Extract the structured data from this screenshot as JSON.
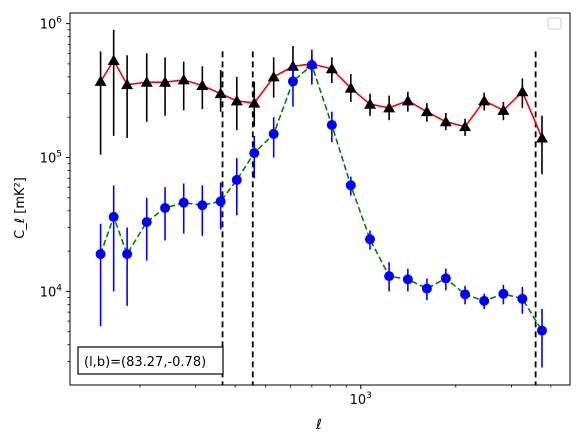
{
  "chart_data": {
    "type": "scatter",
    "title": "",
    "xlabel": "ℓ",
    "ylabel": "C_ℓ  [mK²]",
    "x_scale": "log",
    "y_scale": "log",
    "xlim": [
      120,
      4600
    ],
    "ylim": [
      2000,
      1200000
    ],
    "grid": false,
    "legend": "top-right",
    "x_ticks": [
      {
        "value": 1000,
        "base": "10",
        "exp": "3"
      }
    ],
    "y_ticks": [
      {
        "value": 10000,
        "base": "10",
        "exp": "4"
      },
      {
        "value": 100000,
        "base": "10",
        "exp": "5"
      },
      {
        "value": 1000000,
        "base": "10",
        "exp": "6"
      }
    ],
    "vlines": [
      365,
      455,
      3580
    ],
    "annotation": "(l,b)=(83.27,-0.78)",
    "series": [
      {
        "marker": "triangle",
        "marker_color": "#000000",
        "line_color": "#ff0000",
        "line_style": "solid",
        "errorbar_color": "#000000",
        "points": [
          {
            "x": 150,
            "y": 370000,
            "lo": 105000,
            "hi": 620000
          },
          {
            "x": 165,
            "y": 530000,
            "lo": 145000,
            "hi": 900000
          },
          {
            "x": 182,
            "y": 350000,
            "lo": 140000,
            "hi": 580000
          },
          {
            "x": 210,
            "y": 365000,
            "lo": 185000,
            "hi": 600000
          },
          {
            "x": 240,
            "y": 365000,
            "lo": 205000,
            "hi": 560000
          },
          {
            "x": 275,
            "y": 380000,
            "lo": 225000,
            "hi": 520000
          },
          {
            "x": 315,
            "y": 345000,
            "lo": 230000,
            "hi": 480000
          },
          {
            "x": 360,
            "y": 300000,
            "lo": 220000,
            "hi": 450000
          },
          {
            "x": 405,
            "y": 265000,
            "lo": 160000,
            "hi": 400000
          },
          {
            "x": 460,
            "y": 255000,
            "lo": 170000,
            "hi": 370000
          },
          {
            "x": 530,
            "y": 400000,
            "lo": 280000,
            "hi": 560000
          },
          {
            "x": 610,
            "y": 480000,
            "lo": 340000,
            "hi": 680000
          },
          {
            "x": 700,
            "y": 500000,
            "lo": 370000,
            "hi": 600000
          },
          {
            "x": 810,
            "y": 460000,
            "lo": 360000,
            "hi": 560000
          },
          {
            "x": 930,
            "y": 330000,
            "lo": 260000,
            "hi": 420000
          },
          {
            "x": 1070,
            "y": 250000,
            "lo": 205000,
            "hi": 300000
          },
          {
            "x": 1230,
            "y": 235000,
            "lo": 190000,
            "hi": 290000
          },
          {
            "x": 1410,
            "y": 265000,
            "lo": 220000,
            "hi": 310000
          },
          {
            "x": 1620,
            "y": 220000,
            "lo": 185000,
            "hi": 255000
          },
          {
            "x": 1860,
            "y": 185000,
            "lo": 160000,
            "hi": 215000
          },
          {
            "x": 2140,
            "y": 170000,
            "lo": 145000,
            "hi": 195000
          },
          {
            "x": 2460,
            "y": 265000,
            "lo": 225000,
            "hi": 305000
          },
          {
            "x": 2830,
            "y": 225000,
            "lo": 190000,
            "hi": 260000
          },
          {
            "x": 3250,
            "y": 310000,
            "lo": 235000,
            "hi": 390000
          },
          {
            "x": 3750,
            "y": 140000,
            "lo": 75000,
            "hi": 205000
          }
        ]
      },
      {
        "marker": "circle",
        "marker_color": "#0000ff",
        "line_color": "#008000",
        "line_style": "dashed",
        "errorbar_color": "#0000ff",
        "points": [
          {
            "x": 150,
            "y": 19000,
            "lo": 5500,
            "hi": 32000
          },
          {
            "x": 165,
            "y": 36000,
            "lo": 10000,
            "hi": 62000
          },
          {
            "x": 182,
            "y": 19000,
            "lo": 7800,
            "hi": 30000
          },
          {
            "x": 210,
            "y": 33000,
            "lo": 17000,
            "hi": 50000
          },
          {
            "x": 240,
            "y": 42000,
            "lo": 24000,
            "hi": 60000
          },
          {
            "x": 275,
            "y": 46000,
            "lo": 27000,
            "hi": 64000
          },
          {
            "x": 315,
            "y": 44000,
            "lo": 26000,
            "hi": 62000
          },
          {
            "x": 360,
            "y": 47000,
            "lo": 29000,
            "hi": 65000
          },
          {
            "x": 405,
            "y": 68000,
            "lo": 37000,
            "hi": 99000
          },
          {
            "x": 460,
            "y": 108000,
            "lo": 70000,
            "hi": 145000
          },
          {
            "x": 530,
            "y": 150000,
            "lo": 100000,
            "hi": 200000
          },
          {
            "x": 610,
            "y": 370000,
            "lo": 240000,
            "hi": 500000
          },
          {
            "x": 700,
            "y": 490000,
            "lo": 350000,
            "hi": 640000
          },
          {
            "x": 810,
            "y": 175000,
            "lo": 130000,
            "hi": 220000
          },
          {
            "x": 930,
            "y": 62000,
            "lo": 52000,
            "hi": 72000
          },
          {
            "x": 1070,
            "y": 24500,
            "lo": 20500,
            "hi": 28500
          },
          {
            "x": 1230,
            "y": 13000,
            "lo": 10000,
            "hi": 16500
          },
          {
            "x": 1410,
            "y": 12300,
            "lo": 10000,
            "hi": 14800
          },
          {
            "x": 1620,
            "y": 10500,
            "lo": 8600,
            "hi": 12500
          },
          {
            "x": 1860,
            "y": 12500,
            "lo": 10200,
            "hi": 14800
          },
          {
            "x": 2140,
            "y": 9500,
            "lo": 8000,
            "hi": 11000
          },
          {
            "x": 2460,
            "y": 8500,
            "lo": 7400,
            "hi": 9600
          },
          {
            "x": 2830,
            "y": 9600,
            "lo": 8000,
            "hi": 11200
          },
          {
            "x": 3250,
            "y": 8800,
            "lo": 6800,
            "hi": 10800
          },
          {
            "x": 3750,
            "y": 5100,
            "lo": 2700,
            "hi": 7400
          }
        ]
      }
    ]
  }
}
